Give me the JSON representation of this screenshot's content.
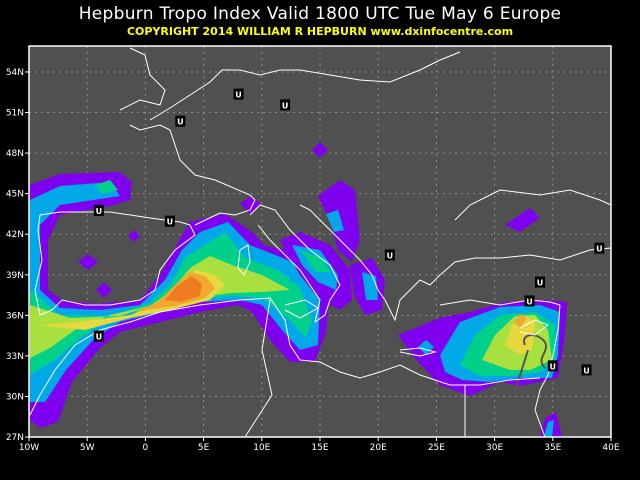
{
  "header": {
    "title": "Hepburn Tropo Index Valid 1800 UTC Tue May 6 Europe",
    "copyright": "COPYRIGHT 2014   WILLIAM R HEPBURN   www.dxinfocentre.com"
  },
  "map": {
    "region": "Europe",
    "lon_range": [
      -10,
      40
    ],
    "lat_range": [
      27,
      56
    ],
    "lon_ticks": [
      -10,
      -5,
      0,
      5,
      10,
      15,
      20,
      25,
      30,
      35,
      40
    ],
    "lon_labels": [
      "10W",
      "5W",
      "0",
      "5E",
      "10E",
      "15E",
      "20E",
      "25E",
      "30E",
      "35E",
      "40E"
    ],
    "lat_ticks": [
      27,
      30,
      33,
      36,
      39,
      42,
      45,
      48,
      51,
      54
    ],
    "lat_labels": [
      "27N",
      "30N",
      "33N",
      "36N",
      "39N",
      "42N",
      "45N",
      "48N",
      "51N",
      "54N"
    ],
    "grid": true,
    "colors": {
      "background": "#505050",
      "coast": "#ffffff",
      "level1": "#7f00ef",
      "level2": "#00a8e8",
      "level3": "#00d08a",
      "level4": "#a8e040",
      "level5": "#e8d840",
      "level6": "#f0a830",
      "level7": "#f07c20"
    },
    "markers": [
      {
        "label": "U",
        "lon": 8.0,
        "lat": 52.4
      },
      {
        "label": "U",
        "lon": 12.0,
        "lat": 51.6
      },
      {
        "label": "U",
        "lon": 3.0,
        "lat": 50.4
      },
      {
        "label": "U",
        "lon": -4.0,
        "lat": 43.8
      },
      {
        "label": "U",
        "lon": 2.1,
        "lat": 43.0
      },
      {
        "label": "U",
        "lon": 21.0,
        "lat": 40.5
      },
      {
        "label": "U",
        "lon": 39.0,
        "lat": 41.0
      },
      {
        "label": "U",
        "lon": 33.9,
        "lat": 38.5
      },
      {
        "label": "U",
        "lon": 33.0,
        "lat": 37.1
      },
      {
        "label": "U",
        "lon": -4.0,
        "lat": 34.5
      },
      {
        "label": "U",
        "lon": 35.0,
        "lat": 32.3
      },
      {
        "label": "U",
        "lon": 37.9,
        "lat": 32.0
      }
    ]
  }
}
